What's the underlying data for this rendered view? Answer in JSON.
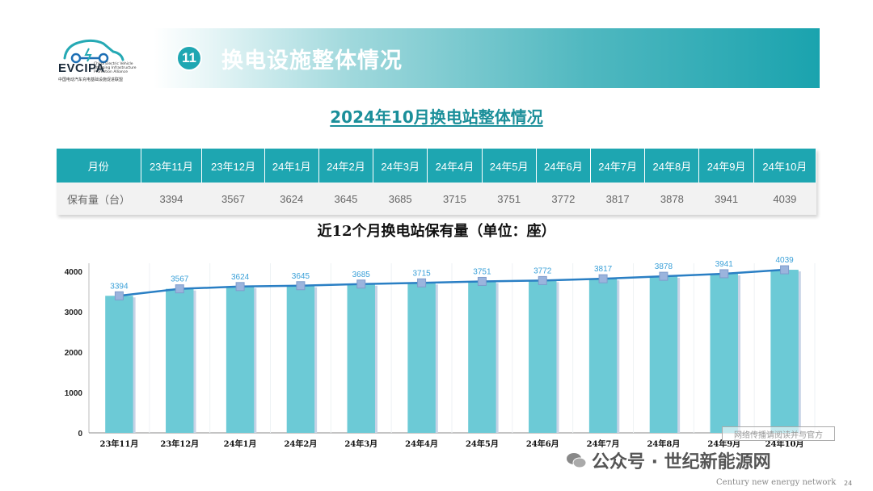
{
  "logo": {
    "name": "EVCIPA",
    "english": "China Electric Vehicle Charging Infrastructure Promotion Alliance",
    "chinese": "中国电动汽车充电基础设施促进联盟"
  },
  "header": {
    "number": "11",
    "title": "换电设施整体情况"
  },
  "main_title": "2024年10月换电站整体情况",
  "table": {
    "row_labels": [
      "月份",
      "保有量（台）"
    ],
    "months": [
      "23年11月",
      "23年12月",
      "24年1月",
      "24年2月",
      "24年3月",
      "24年4月",
      "24年5月",
      "24年6月",
      "24年7月",
      "24年8月",
      "24年9月",
      "24年10月"
    ],
    "values": [
      "3394",
      "3567",
      "3624",
      "3645",
      "3685",
      "3715",
      "3751",
      "3772",
      "3817",
      "3878",
      "3941",
      "4039"
    ]
  },
  "chart_data": {
    "type": "bar",
    "title": "近12个月换电站保有量（单位：座）",
    "categories": [
      "23年11月",
      "23年12月",
      "24年1月",
      "24年2月",
      "24年3月",
      "24年4月",
      "24年5月",
      "24年6月",
      "24年7月",
      "24年8月",
      "24年9月",
      "24年10月"
    ],
    "values": [
      3394,
      3567,
      3624,
      3645,
      3685,
      3715,
      3751,
      3772,
      3817,
      3878,
      3941,
      4039
    ],
    "overlay": "line",
    "ylim": [
      0,
      4000
    ],
    "yticks": [
      0,
      1000,
      2000,
      3000,
      4000
    ],
    "grid": false,
    "bar_color": "#6ccad6",
    "line_color": "#2a7fc4",
    "marker_color": "#9bb4dd",
    "label_color": "#3aa0d8"
  },
  "footer": {
    "stamp": "网络传播请阅读并与官方",
    "wechat": "公众号 · 世纪新能源网",
    "english": "Century new energy network",
    "page": "24"
  },
  "colors": {
    "accent": "#1ea6b1",
    "title": "#1b8f9a"
  }
}
